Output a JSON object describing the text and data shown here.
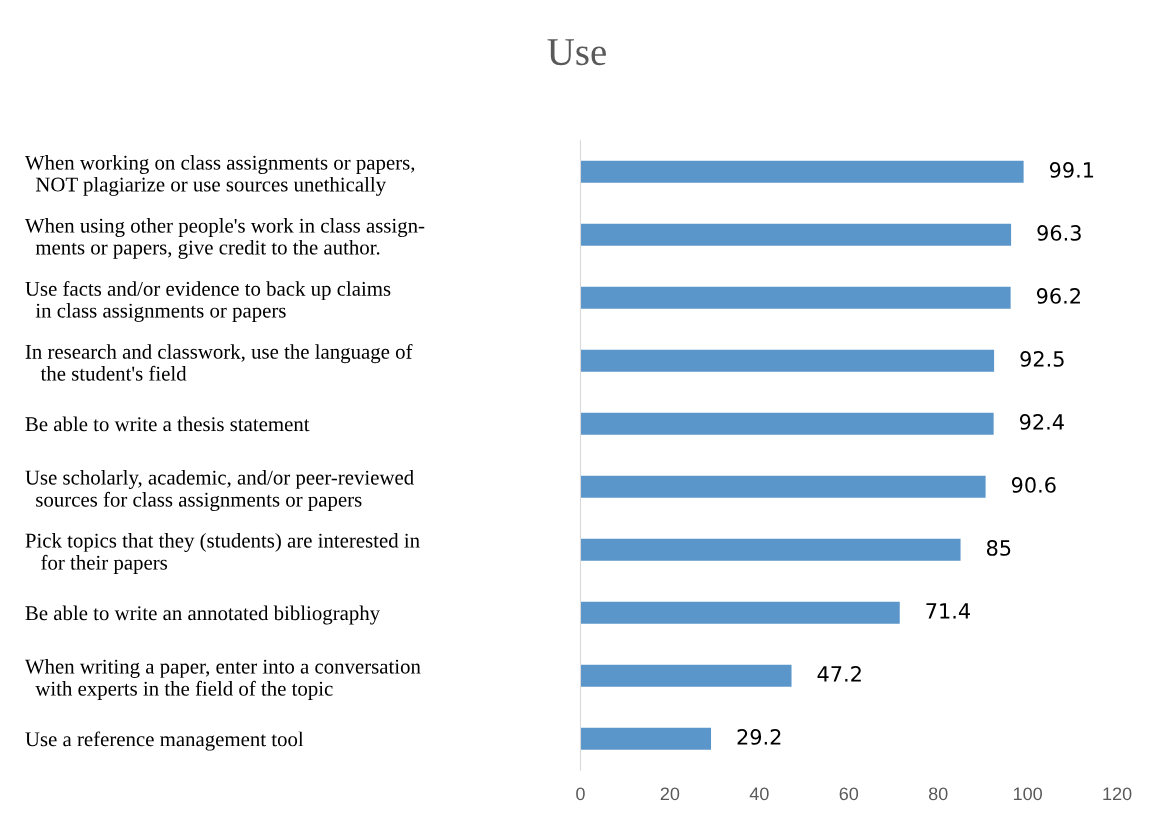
{
  "chart_data": {
    "type": "bar",
    "orientation": "horizontal",
    "title": "Use",
    "categories": [
      "When working on class assignments or papers,\n  NOT plagiarize or use sources unethically",
      "When using other people's work in class assign-\n  ments or papers, give credit to the author.",
      "Use facts and/or evidence to back up claims\n  in class assignments or papers",
      "In research and classwork, use the language of\n   the student's field",
      "Be able to write a thesis statement",
      "Use scholarly, academic, and/or peer-reviewed\n  sources for class assignments or papers",
      "Pick topics that they (students) are interested in\n   for their papers",
      "Be able to write an annotated bibliography",
      "When writing a paper, enter into a conversation\n  with experts in the field of the topic",
      "Use a reference management tool"
    ],
    "values": [
      99.1,
      96.3,
      96.2,
      92.5,
      92.4,
      90.6,
      85,
      71.4,
      47.2,
      29.2
    ],
    "color": "#5b96cb",
    "xlim": [
      0,
      120
    ],
    "xticks": [
      0,
      20,
      40,
      60,
      80,
      100,
      120
    ],
    "data_labels": true,
    "grid": false
  }
}
